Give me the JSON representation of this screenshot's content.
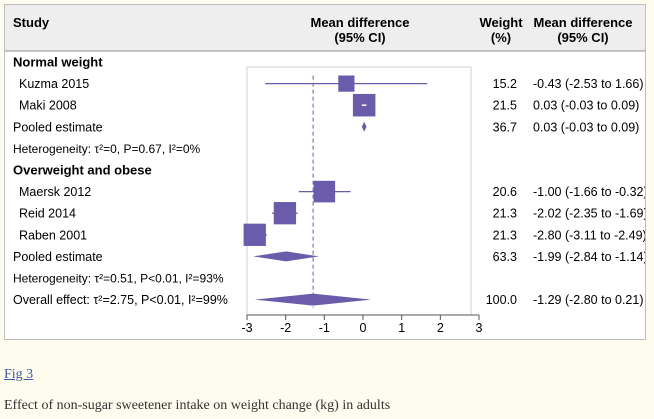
{
  "headers": {
    "study": "Study",
    "md_line1": "Mean difference",
    "md_line2": "(95% CI)",
    "weight_line1": "Weight",
    "weight_line2": "(%)",
    "md_col_line1": "Mean difference",
    "md_col_line2": "(95% CI)"
  },
  "figure_link": "Fig 3",
  "caption": "Effect of non-sugar sweetener intake on weight change (kg) in adults",
  "colors": {
    "marker": "#6a5bab",
    "header_bg": "#eeeeee",
    "divider": "#8c8c8c",
    "overall_line": "#6a5bab"
  },
  "chart_data": {
    "type": "forest",
    "xlim": [
      -3,
      3
    ],
    "ticks": [
      -3,
      -2,
      -1,
      0,
      1,
      2,
      3
    ],
    "overall_estimate": -1.29,
    "rows": [
      {
        "kind": "group",
        "label": "Normal weight"
      },
      {
        "kind": "study",
        "label": "Kuzma 2015",
        "estimate": -0.43,
        "lower": -2.53,
        "upper": 1.66,
        "weight": "15.2",
        "ci_text": "-0.43 (-2.53 to 1.66)"
      },
      {
        "kind": "study",
        "label": "Maki 2008",
        "estimate": 0.03,
        "lower": -0.03,
        "upper": 0.09,
        "weight": "21.5",
        "ci_text": "0.03 (-0.03 to 0.09)"
      },
      {
        "kind": "pooled",
        "label": "Pooled estimate",
        "estimate": 0.03,
        "lower": -0.03,
        "upper": 0.09,
        "weight": "36.7",
        "ci_text": "0.03 (-0.03 to 0.09)"
      },
      {
        "kind": "heterogeneity",
        "label": "Heterogeneity: τ²=0, P=0.67, I²=0%"
      },
      {
        "kind": "group",
        "label": "Overweight and obese"
      },
      {
        "kind": "study",
        "label": "Maersk 2012",
        "estimate": -1.0,
        "lower": -1.66,
        "upper": -0.32,
        "weight": "20.6",
        "ci_text": "-1.00 (-1.66 to -0.32)"
      },
      {
        "kind": "study",
        "label": "Reid 2014",
        "estimate": -2.02,
        "lower": -2.35,
        "upper": -1.69,
        "weight": "21.3",
        "ci_text": "-2.02 (-2.35 to -1.69)"
      },
      {
        "kind": "study",
        "label": "Raben 2001",
        "estimate": -2.8,
        "lower": -3.11,
        "upper": -2.49,
        "weight": "21.3",
        "ci_text": "-2.80 (-3.11 to -2.49)"
      },
      {
        "kind": "pooled",
        "label": "Pooled estimate",
        "estimate": -1.99,
        "lower": -2.84,
        "upper": -1.14,
        "weight": "63.3",
        "ci_text": "-1.99 (-2.84 to -1.14)"
      },
      {
        "kind": "heterogeneity",
        "label": "Heterogeneity: τ²=0.51, P<0.01, I²=93%"
      },
      {
        "kind": "overall",
        "label": "Overall effect: τ²=2.75, P<0.01, I²=99%",
        "estimate": -1.29,
        "lower": -2.8,
        "upper": 0.21,
        "weight": "100.0",
        "ci_text": "-1.29 (-2.80 to 0.21)"
      }
    ]
  }
}
